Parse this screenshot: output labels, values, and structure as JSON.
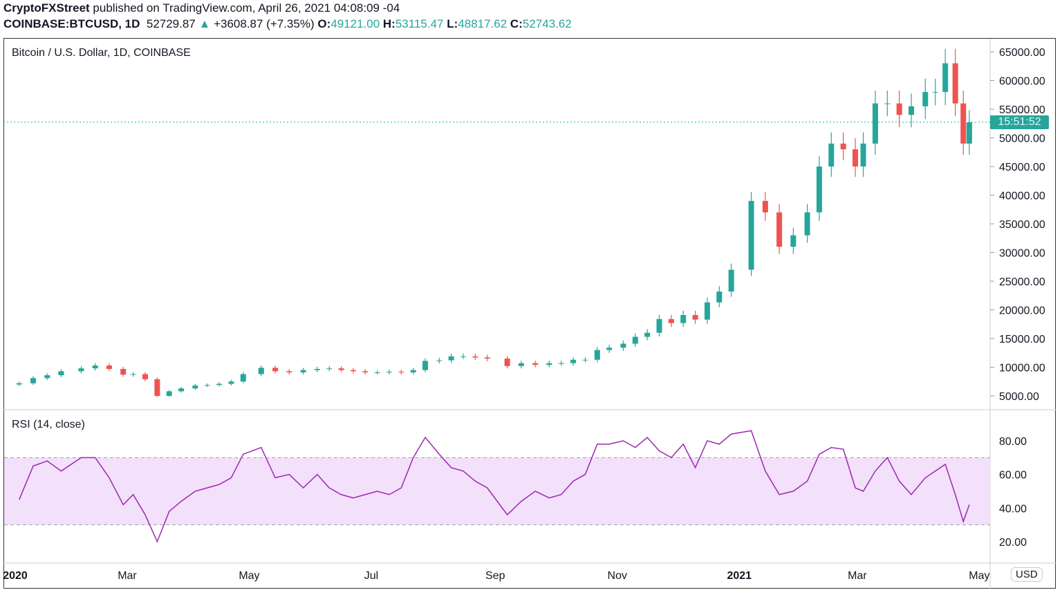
{
  "header": {
    "author": "CryptoFXStreet",
    "published": "published on TradingView.com, April 26, 2021 04:08:09 -04",
    "symbol": "COINBASE:BTCUSD, 1D",
    "last": "52729.87",
    "change": "+3608.87 (+7.35%)",
    "o_label": "O:",
    "o": "49121.00",
    "h_label": "H:",
    "h": "53115.47",
    "l_label": "L:",
    "l": "48817.62",
    "c_label": "C:",
    "c": "52743.62"
  },
  "pane_title": "Bitcoin / U.S. Dollar, 1D, COINBASE",
  "currency": "USD",
  "countdown": "15:51:52",
  "colors": {
    "up": "#26a69a",
    "down": "#ef5350",
    "rsi": "#9c27b0",
    "rsi_band": "#f3e0fb"
  },
  "chart_data": [
    {
      "type": "candlestick",
      "title": "Bitcoin / U.S. Dollar, 1D, COINBASE",
      "ylim": [
        3000,
        66000
      ],
      "last_price": 52729.87,
      "y_ticks": [
        "5000.00",
        "10000.00",
        "15000.00",
        "20000.00",
        "25000.00",
        "30000.00",
        "35000.00",
        "40000.00",
        "45000.00",
        "50000.00",
        "55000.00",
        "60000.00",
        "65000.00"
      ],
      "x_ticks": [
        "2020",
        "Mar",
        "May",
        "Jul",
        "Sep",
        "Nov",
        "2021",
        "Mar",
        "May"
      ],
      "dates": [
        "2020-01-07",
        "2020-01-14",
        "2020-01-21",
        "2020-01-28",
        "2020-02-07",
        "2020-02-14",
        "2020-02-21",
        "2020-02-28",
        "2020-03-04",
        "2020-03-10",
        "2020-03-16",
        "2020-03-22",
        "2020-03-28",
        "2020-04-04",
        "2020-04-10",
        "2020-04-16",
        "2020-04-22",
        "2020-04-28",
        "2020-05-07",
        "2020-05-14",
        "2020-05-21",
        "2020-05-28",
        "2020-06-04",
        "2020-06-10",
        "2020-06-16",
        "2020-06-22",
        "2020-06-28",
        "2020-07-04",
        "2020-07-10",
        "2020-07-16",
        "2020-07-22",
        "2020-07-28",
        "2020-08-04",
        "2020-08-10",
        "2020-08-16",
        "2020-08-22",
        "2020-08-28",
        "2020-09-07",
        "2020-09-14",
        "2020-09-21",
        "2020-09-28",
        "2020-10-04",
        "2020-10-10",
        "2020-10-16",
        "2020-10-22",
        "2020-10-28",
        "2020-11-04",
        "2020-11-10",
        "2020-11-16",
        "2020-11-22",
        "2020-11-28",
        "2020-12-04",
        "2020-12-10",
        "2020-12-16",
        "2020-12-22",
        "2020-12-28",
        "2021-01-07",
        "2021-01-14",
        "2021-01-21",
        "2021-01-28",
        "2021-02-04",
        "2021-02-10",
        "2021-02-16",
        "2021-02-22",
        "2021-02-28",
        "2021-03-04",
        "2021-03-10",
        "2021-03-16",
        "2021-03-22",
        "2021-03-28",
        "2021-04-04",
        "2021-04-09",
        "2021-04-14",
        "2021-04-19",
        "2021-04-23",
        "2021-04-26"
      ],
      "close": [
        7200,
        8100,
        8600,
        9300,
        9800,
        10300,
        9700,
        8700,
        8800,
        7900,
        5000,
        5800,
        6300,
        6800,
        6900,
        7100,
        7500,
        8800,
        9900,
        9300,
        9100,
        9500,
        9700,
        9800,
        9500,
        9300,
        9100,
        9100,
        9200,
        9100,
        9500,
        11100,
        11200,
        11900,
        11900,
        11700,
        11500,
        10200,
        10700,
        10400,
        10700,
        10700,
        11300,
        11300,
        13000,
        13400,
        14100,
        15300,
        16000,
        18400,
        17700,
        19100,
        18300,
        21300,
        23200,
        27000,
        39000,
        37000,
        31000,
        33000,
        37000,
        45000,
        49000,
        48000,
        45000,
        49000,
        56000,
        56000,
        54000,
        55500,
        58000,
        58000,
        63000,
        56000,
        49000,
        52700
      ]
    },
    {
      "type": "line",
      "title": "RSI (14, close)",
      "ylim": [
        12,
        92
      ],
      "bands": [
        30,
        70
      ],
      "y_ticks": [
        "20.00",
        "40.00",
        "60.00",
        "80.00"
      ],
      "values": [
        45,
        65,
        68,
        62,
        70,
        70,
        58,
        42,
        48,
        36,
        20,
        38,
        44,
        50,
        52,
        54,
        58,
        72,
        76,
        58,
        60,
        52,
        60,
        52,
        48,
        46,
        48,
        50,
        48,
        52,
        70,
        82,
        72,
        64,
        62,
        56,
        52,
        36,
        44,
        50,
        46,
        48,
        56,
        60,
        78,
        78,
        80,
        76,
        82,
        74,
        70,
        78,
        64,
        80,
        78,
        84,
        86,
        62,
        48,
        50,
        56,
        72,
        76,
        75,
        52,
        50,
        62,
        70,
        56,
        48,
        58,
        62,
        66,
        48,
        32,
        42
      ]
    }
  ]
}
